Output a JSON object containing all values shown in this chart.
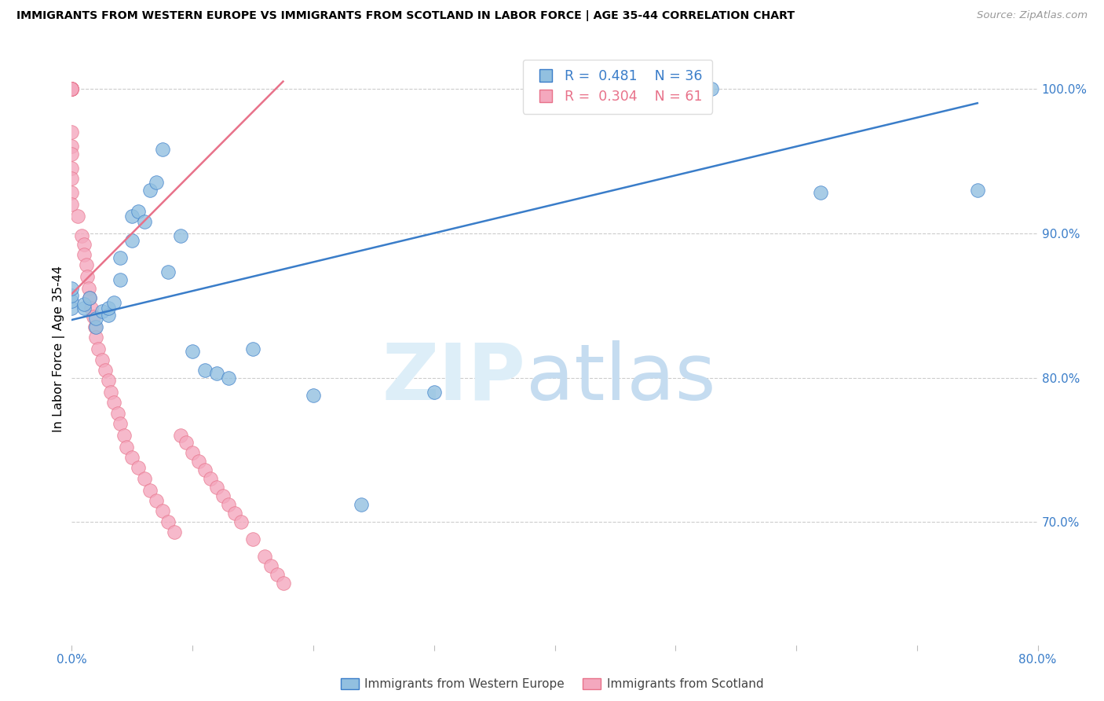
{
  "title": "IMMIGRANTS FROM WESTERN EUROPE VS IMMIGRANTS FROM SCOTLAND IN LABOR FORCE | AGE 35-44 CORRELATION CHART",
  "source": "Source: ZipAtlas.com",
  "ylabel": "In Labor Force | Age 35-44",
  "xlim": [
    0.0,
    0.8
  ],
  "ylim": [
    0.615,
    1.025
  ],
  "ytick_positions": [
    0.7,
    0.8,
    0.9,
    1.0
  ],
  "ytick_labels": [
    "70.0%",
    "80.0%",
    "90.0%",
    "100.0%"
  ],
  "xtick_positions": [
    0.0,
    0.1,
    0.2,
    0.3,
    0.4,
    0.5,
    0.6,
    0.7,
    0.8
  ],
  "xtick_labels": [
    "0.0%",
    "",
    "",
    "",
    "",
    "",
    "",
    "",
    "80.0%"
  ],
  "blue_color": "#92C0E0",
  "pink_color": "#F4A8BE",
  "blue_line_color": "#3A7DC9",
  "pink_line_color": "#E8728A",
  "legend_blue_R": "0.481",
  "legend_blue_N": "36",
  "legend_pink_R": "0.304",
  "legend_pink_N": "61",
  "blue_scatter_x": [
    0.0,
    0.0,
    0.0,
    0.0,
    0.01,
    0.01,
    0.015,
    0.02,
    0.02,
    0.025,
    0.03,
    0.03,
    0.035,
    0.04,
    0.04,
    0.05,
    0.05,
    0.055,
    0.06,
    0.065,
    0.07,
    0.075,
    0.08,
    0.09,
    0.1,
    0.11,
    0.12,
    0.13,
    0.15,
    0.2,
    0.24,
    0.3,
    0.42,
    0.53,
    0.62,
    0.75
  ],
  "blue_scatter_y": [
    0.848,
    0.853,
    0.857,
    0.862,
    0.848,
    0.851,
    0.855,
    0.835,
    0.841,
    0.846,
    0.843,
    0.848,
    0.852,
    0.868,
    0.883,
    0.895,
    0.912,
    0.915,
    0.908,
    0.93,
    0.935,
    0.958,
    0.873,
    0.898,
    0.818,
    0.805,
    0.803,
    0.8,
    0.82,
    0.788,
    0.712,
    0.79,
    1.0,
    1.0,
    0.928,
    0.93
  ],
  "pink_scatter_x": [
    0.0,
    0.0,
    0.0,
    0.0,
    0.0,
    0.0,
    0.0,
    0.0,
    0.0,
    0.0,
    0.0,
    0.0,
    0.0,
    0.0,
    0.0,
    0.005,
    0.008,
    0.01,
    0.01,
    0.012,
    0.013,
    0.014,
    0.015,
    0.016,
    0.018,
    0.019,
    0.02,
    0.022,
    0.025,
    0.028,
    0.03,
    0.032,
    0.035,
    0.038,
    0.04,
    0.043,
    0.045,
    0.05,
    0.055,
    0.06,
    0.065,
    0.07,
    0.075,
    0.08,
    0.085,
    0.09,
    0.095,
    0.1,
    0.105,
    0.11,
    0.115,
    0.12,
    0.125,
    0.13,
    0.135,
    0.14,
    0.15,
    0.16,
    0.165,
    0.17,
    0.175
  ],
  "pink_scatter_y": [
    1.0,
    1.0,
    1.0,
    1.0,
    1.0,
    1.0,
    1.0,
    1.0,
    0.97,
    0.96,
    0.955,
    0.945,
    0.938,
    0.928,
    0.92,
    0.912,
    0.898,
    0.892,
    0.885,
    0.878,
    0.87,
    0.862,
    0.855,
    0.848,
    0.842,
    0.835,
    0.828,
    0.82,
    0.812,
    0.805,
    0.798,
    0.79,
    0.783,
    0.775,
    0.768,
    0.76,
    0.752,
    0.745,
    0.738,
    0.73,
    0.722,
    0.715,
    0.708,
    0.7,
    0.693,
    0.76,
    0.755,
    0.748,
    0.742,
    0.736,
    0.73,
    0.724,
    0.718,
    0.712,
    0.706,
    0.7,
    0.688,
    0.676,
    0.67,
    0.664,
    0.658
  ],
  "blue_trendline_x": [
    0.0,
    0.75
  ],
  "blue_trendline_y": [
    0.84,
    0.99
  ],
  "pink_trendline_x": [
    0.0,
    0.175
  ],
  "pink_trendline_y": [
    0.858,
    1.005
  ],
  "bottom_legend": [
    "Immigrants from Western Europe",
    "Immigrants from Scotland"
  ]
}
